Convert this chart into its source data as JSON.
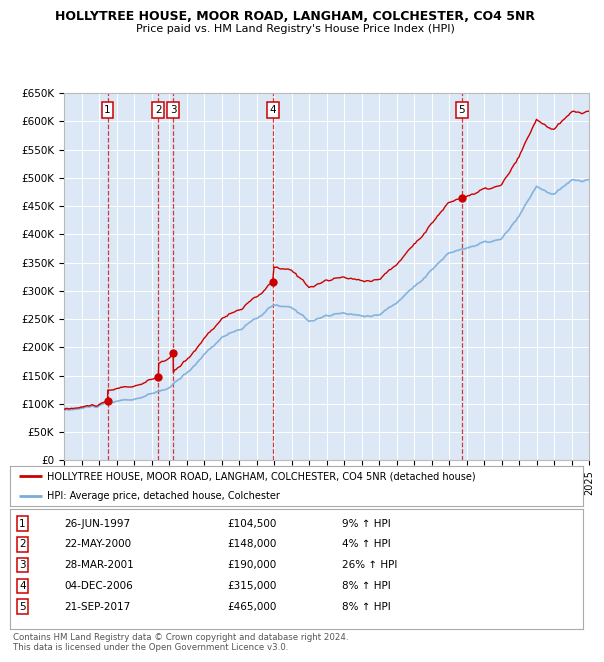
{
  "title": "HOLLYTREE HOUSE, MOOR ROAD, LANGHAM, COLCHESTER, CO4 5NR",
  "subtitle": "Price paid vs. HM Land Registry's House Price Index (HPI)",
  "ylabel_ticks": [
    "£0",
    "£50K",
    "£100K",
    "£150K",
    "£200K",
    "£250K",
    "£300K",
    "£350K",
    "£400K",
    "£450K",
    "£500K",
    "£550K",
    "£600K",
    "£650K"
  ],
  "ytick_values": [
    0,
    50000,
    100000,
    150000,
    200000,
    250000,
    300000,
    350000,
    400000,
    450000,
    500000,
    550000,
    600000,
    650000
  ],
  "ylim": [
    0,
    650000
  ],
  "plot_bg": "#dce8f5",
  "transactions": [
    {
      "num": 1,
      "date_yr": 1997.49,
      "price": 104500
    },
    {
      "num": 2,
      "date_yr": 2000.39,
      "price": 148000
    },
    {
      "num": 3,
      "date_yr": 2001.24,
      "price": 190000
    },
    {
      "num": 4,
      "date_yr": 2006.92,
      "price": 315000
    },
    {
      "num": 5,
      "date_yr": 2017.72,
      "price": 465000
    }
  ],
  "table_rows": [
    {
      "num": "1",
      "date": "26-JUN-1997",
      "price": "£104,500",
      "pct": "9% ↑ HPI"
    },
    {
      "num": "2",
      "date": "22-MAY-2000",
      "price": "£148,000",
      "pct": "4% ↑ HPI"
    },
    {
      "num": "3",
      "date": "28-MAR-2001",
      "price": "£190,000",
      "pct": "26% ↑ HPI"
    },
    {
      "num": "4",
      "date": "04-DEC-2006",
      "price": "£315,000",
      "pct": "8% ↑ HPI"
    },
    {
      "num": "5",
      "date": "21-SEP-2017",
      "price": "£465,000",
      "pct": "8% ↑ HPI"
    }
  ],
  "legend_house": "HOLLYTREE HOUSE, MOOR ROAD, LANGHAM, COLCHESTER, CO4 5NR (detached house)",
  "legend_hpi": "HPI: Average price, detached house, Colchester",
  "footer": "Contains HM Land Registry data © Crown copyright and database right 2024.\nThis data is licensed under the Open Government Licence v3.0.",
  "house_color": "#cc0000",
  "hpi_color": "#7aaddb",
  "vline_color": "#cc0000",
  "dot_color": "#cc0000"
}
